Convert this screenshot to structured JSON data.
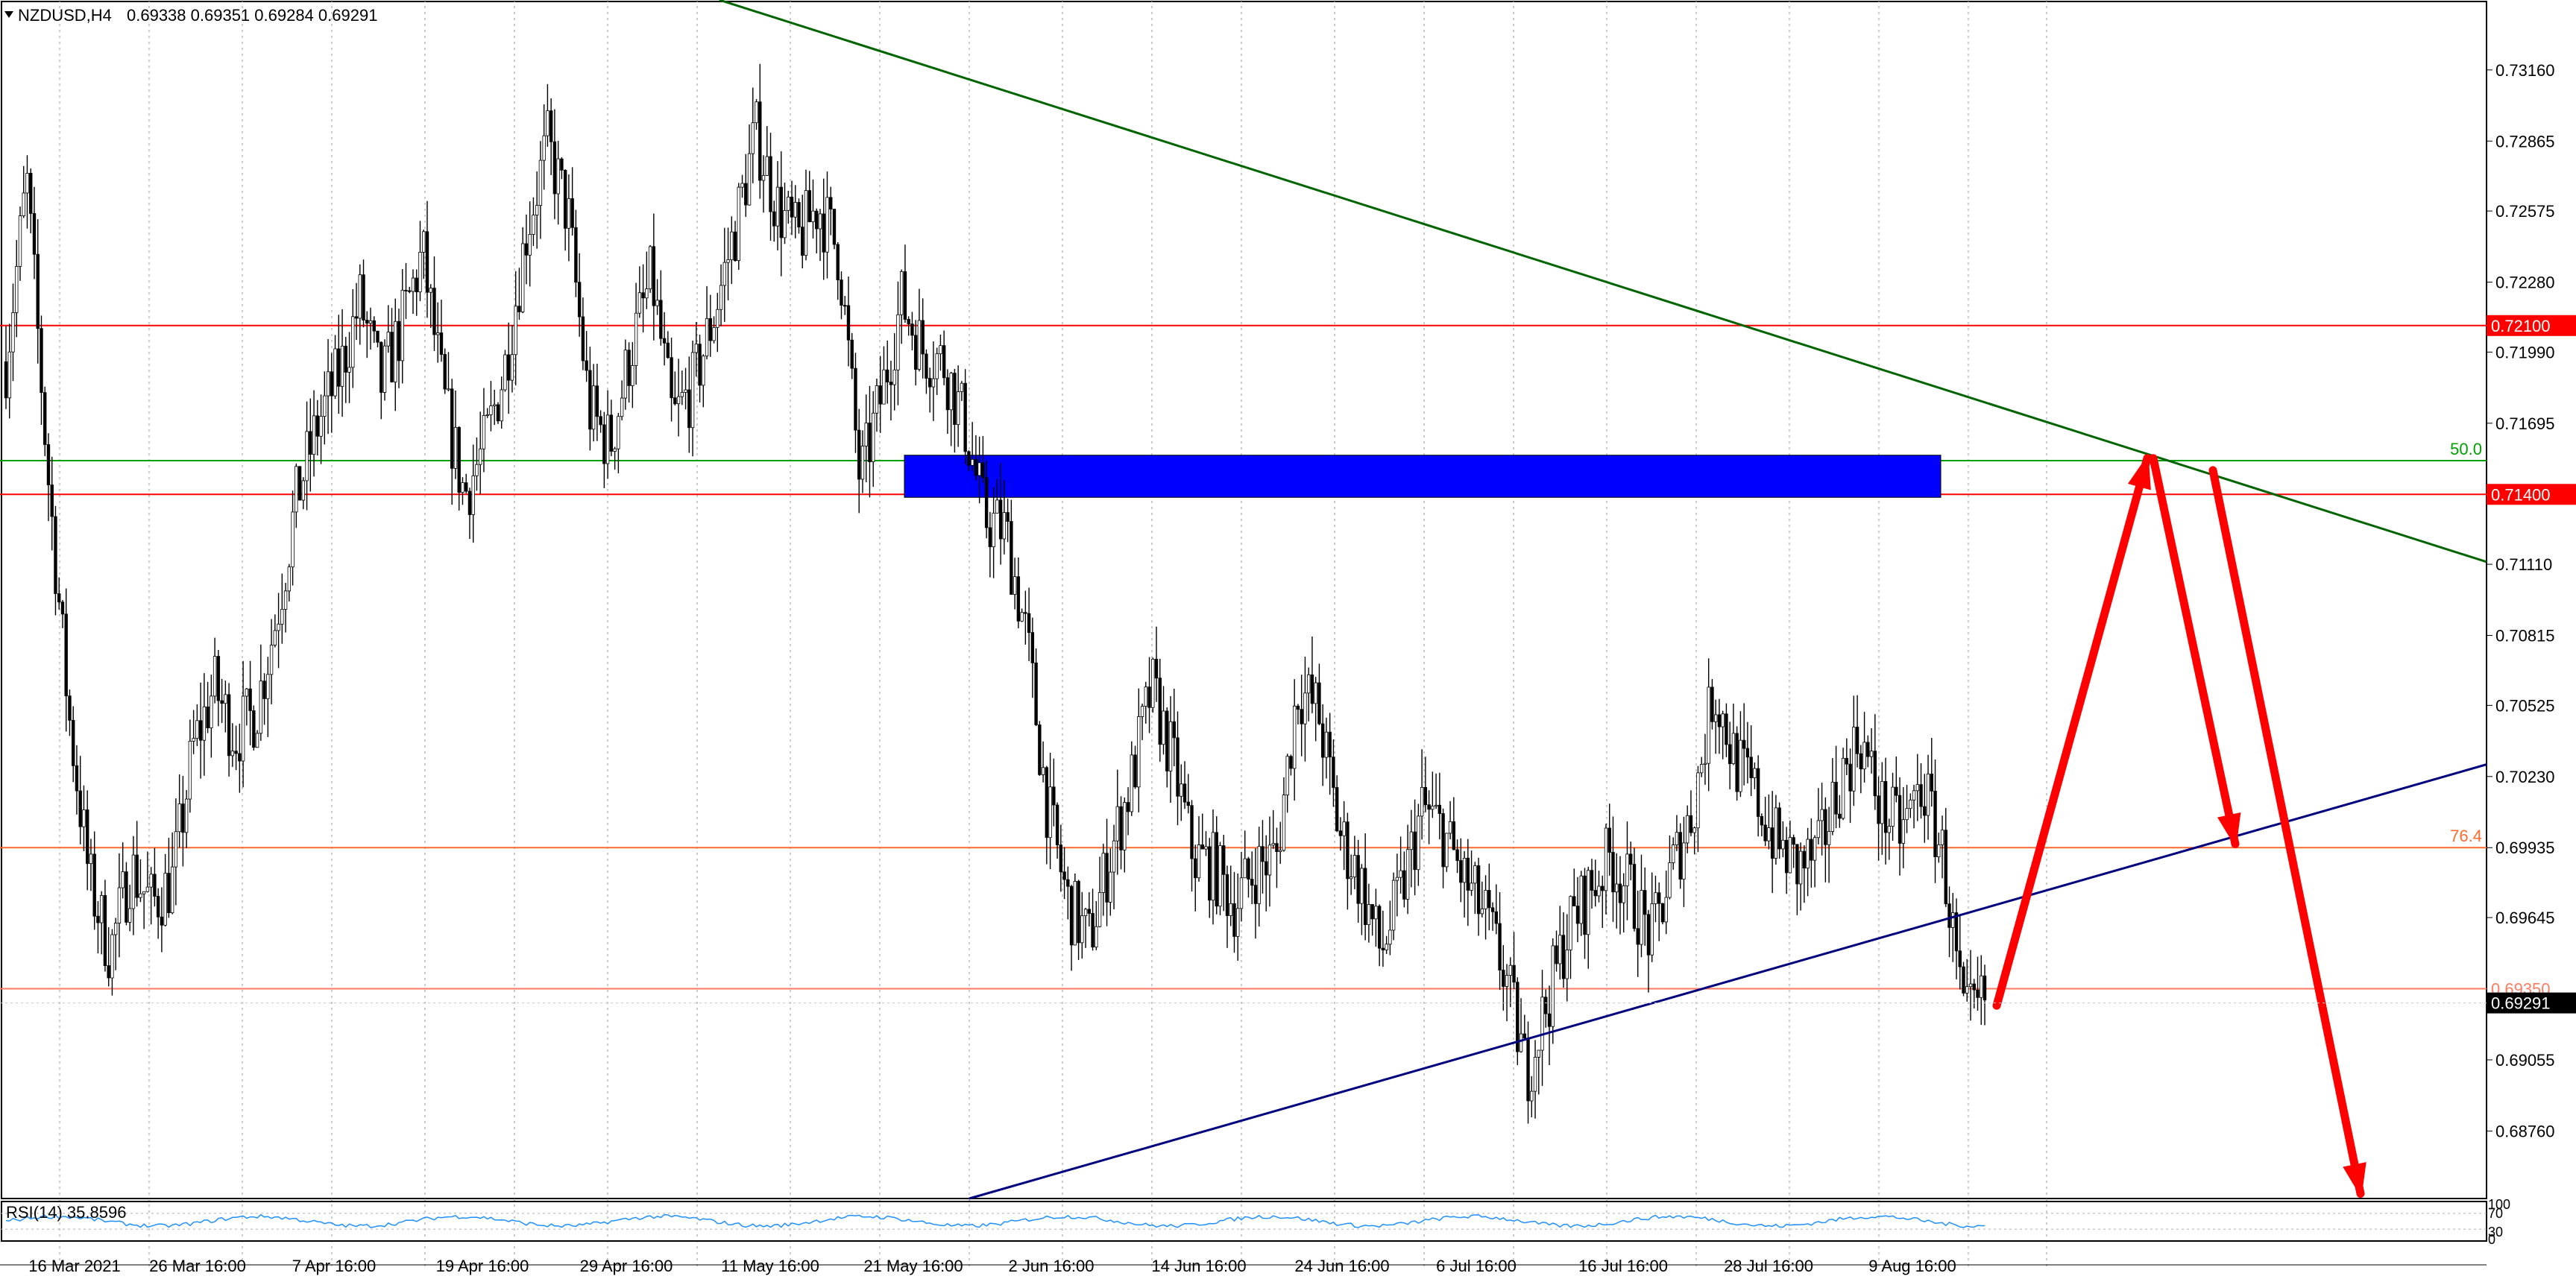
{
  "header": {
    "symbol_label": "NZDUSD,H4",
    "ohlc_text": "0.69338 0.69351 0.69284 0.69291"
  },
  "rsi": {
    "label": "RSI(14) 35.8596",
    "scale_labels": [
      "100",
      "70",
      "30",
      "0"
    ]
  },
  "chart_data": {
    "type": "candlestick",
    "title": "NZDUSD,H4",
    "y_ticks": [
      "0.73160",
      "0.72865",
      "0.72575",
      "0.72280",
      "0.71990",
      "0.71695",
      "0.71110",
      "0.70815",
      "0.70525",
      "0.70230",
      "0.69935",
      "0.69645",
      "0.69055",
      "0.68760"
    ],
    "ylim": [
      0.6848,
      0.7345
    ],
    "x_tick_labels": [
      "16 Mar 2021",
      "26 Mar 16:00",
      "7 Apr 16:00",
      "19 Apr 16:00",
      "29 Apr 16:00",
      "11 May 16:00",
      "21 May 16:00",
      "2 Jun 16:00",
      "14 Jun 16:00",
      "24 Jun 16:00",
      "6 Jul 16:00",
      "16 Jul 16:00",
      "28 Jul 16:00",
      "9 Aug 16:00"
    ],
    "price_series": {
      "name": "NZDUSD",
      "points": [
        [
          "16 Mar 2021",
          0.7195
        ],
        [
          "18 Mar",
          0.727
        ],
        [
          "22 Mar",
          0.715
        ],
        [
          "23 Mar",
          0.705
        ],
        [
          "24 Mar",
          0.698
        ],
        [
          "25 Mar",
          0.695
        ],
        [
          "26 Mar 16:00",
          0.6985
        ],
        [
          "29 Mar",
          0.697
        ],
        [
          "31 Mar",
          0.698
        ],
        [
          "1 Apr",
          0.7035
        ],
        [
          "5 Apr",
          0.706
        ],
        [
          "7 Apr 16:00",
          0.704
        ],
        [
          "8 Apr",
          0.705
        ],
        [
          "12 Apr",
          0.709
        ],
        [
          "14 Apr",
          0.714
        ],
        [
          "15 Apr",
          0.717
        ],
        [
          "19 Apr 16:00",
          0.719
        ],
        [
          "20 Apr",
          0.722
        ],
        [
          "22 Apr",
          0.7185
        ],
        [
          "26 Apr",
          0.721
        ],
        [
          "27 Apr",
          0.724
        ],
        [
          "29 Apr 16:00",
          0.718
        ],
        [
          "30 Apr",
          0.714
        ],
        [
          "3 May",
          0.716
        ],
        [
          "5 May",
          0.7195
        ],
        [
          "7 May",
          0.725
        ],
        [
          "10 May",
          0.7285
        ],
        [
          "11 May 16:00",
          0.7255
        ],
        [
          "12 May",
          0.7175
        ],
        [
          "13 May",
          0.716
        ],
        [
          "14 May",
          0.72
        ],
        [
          "17 May",
          0.723
        ],
        [
          "19 May",
          0.717
        ],
        [
          "20 May",
          0.7185
        ],
        [
          "21 May 16:00",
          0.7215
        ],
        [
          "24 May",
          0.725
        ],
        [
          "25 May",
          0.729
        ],
        [
          "27 May",
          0.726
        ],
        [
          "28 May",
          0.7245
        ],
        [
          "31 May",
          0.726
        ],
        [
          "1 Jun",
          0.724
        ],
        [
          "2 Jun 16:00",
          0.7145
        ],
        [
          "3 Jun",
          0.718
        ],
        [
          "4 Jun",
          0.722
        ],
        [
          "7 Jun",
          0.72
        ],
        [
          "9 Jun",
          0.7195
        ],
        [
          "10 Jun",
          0.717
        ],
        [
          "11 Jun",
          0.713
        ],
        [
          "14 Jun 16:00",
          0.7125
        ],
        [
          "15 Jun",
          0.708
        ],
        [
          "16 Jun",
          0.701
        ],
        [
          "17 Jun",
          0.697
        ],
        [
          "18 Jun",
          0.6955
        ],
        [
          "21 Jun",
          0.699
        ],
        [
          "22 Jun",
          0.702
        ],
        [
          "23 Jun",
          0.706
        ],
        [
          "24 Jun 16:00",
          0.703
        ],
        [
          "25 Jun",
          0.699
        ],
        [
          "28 Jun",
          0.6985
        ],
        [
          "29 Jun",
          0.697
        ],
        [
          "30 Jun",
          0.6985
        ],
        [
          "1 Jul",
          0.699
        ],
        [
          "2 Jul",
          0.706
        ],
        [
          "5 Jul",
          0.705
        ],
        [
          "6 Jul 16:00",
          0.7
        ],
        [
          "7 Jul",
          0.698
        ],
        [
          "8 Jul",
          0.695
        ],
        [
          "9 Jul",
          0.6975
        ],
        [
          "12 Jul",
          0.701
        ],
        [
          "13 Jul",
          0.7
        ],
        [
          "14 Jul",
          0.698
        ],
        [
          "15 Jul",
          0.6965
        ],
        [
          "16 Jul 16:00",
          0.694
        ],
        [
          "19 Jul",
          0.69
        ],
        [
          "20 Jul",
          0.693
        ],
        [
          "21 Jul",
          0.696
        ],
        [
          "22 Jul",
          0.6975
        ],
        [
          "23 Jul",
          0.699
        ],
        [
          "26 Jul",
          0.6975
        ],
        [
          "27 Jul",
          0.6955
        ],
        [
          "28 Jul 16:00",
          0.6985
        ],
        [
          "29 Jul",
          0.701
        ],
        [
          "30 Jul",
          0.706
        ],
        [
          "2 Aug",
          0.703
        ],
        [
          "3 Aug",
          0.7015
        ],
        [
          "4 Aug",
          0.6995
        ],
        [
          "5 Aug",
          0.6985
        ],
        [
          "6 Aug",
          0.699
        ],
        [
          "9 Aug 16:00",
          0.702
        ],
        [
          "10 Aug",
          0.704
        ],
        [
          "11 Aug",
          0.701
        ],
        [
          "12 Aug",
          0.7
        ],
        [
          "13 Aug",
          0.702
        ],
        [
          "16 Aug",
          0.699
        ],
        [
          "17 Aug",
          0.692
        ],
        [
          "18 Aug",
          0.693
        ]
      ]
    },
    "horizontal_levels": [
      {
        "price": 0.721,
        "color": "#ff0000",
        "label": "0.72100"
      },
      {
        "price": 0.714,
        "color": "#ff0000",
        "label": "0.71400"
      },
      {
        "price": 0.7154,
        "color": "#00a000",
        "label": "50.0"
      },
      {
        "price": 0.69935,
        "color": "#ff6a2f",
        "label": "76.4"
      },
      {
        "price": 0.6935,
        "color": "#ff7b60",
        "label": "0.69350"
      }
    ],
    "current_price": {
      "value": 0.69291,
      "label": "0.69291"
    },
    "supply_zone": {
      "from_date": "21 May 16:00",
      "to_date": "9 Aug 16:00",
      "price_low": 0.714,
      "price_high": 0.7155,
      "color": "#0000ff"
    },
    "trendlines": [
      {
        "name": "descending resistance",
        "color": "#006400",
        "from": [
          "11 May",
          0.7345
        ],
        "to": [
          "right edge",
          0.7112
        ]
      },
      {
        "name": "ascending support",
        "color": "#000080",
        "from": [
          "21 May",
          0.6848
        ],
        "to": [
          "right edge",
          0.7028
        ]
      }
    ],
    "forecast_arrows": {
      "color": "#ff0000",
      "paths": [
        [
          [
            "18 Aug",
            0.6928
          ],
          [
            "peak",
            0.7155
          ],
          [
            "target",
            0.6995
          ]
        ],
        [
          [
            "peak2",
            0.715
          ],
          [
            "target2",
            0.685
          ]
        ]
      ]
    },
    "rsi_series": {
      "name": "RSI(14)",
      "value": 35.8596,
      "ylim": [
        0,
        100
      ],
      "levels": [
        30,
        70
      ]
    }
  }
}
